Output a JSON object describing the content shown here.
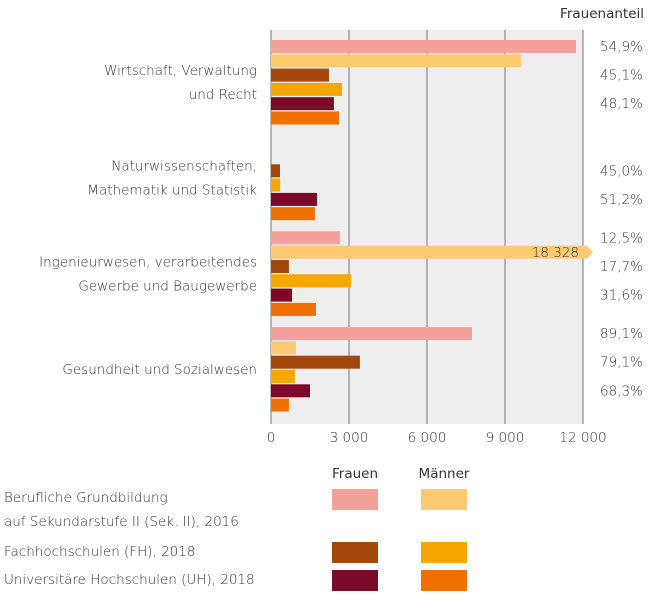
{
  "chart_data": {
    "type": "bar",
    "orientation": "horizontal",
    "categories": [
      "Wirtschaft, Verwaltung\nund Recht",
      "Naturwissenschaften,\nMathematik und Statistik",
      "Ingenieurwesen, verarbeitendes\nGewerbe und Baugewerbe",
      "Gesundheit und Sozialwesen"
    ],
    "series": [
      {
        "color": "#f4a19b",
        "values": [
          11730,
          null,
          2650,
          7730
        ]
      },
      {
        "color": "#fdca72",
        "values": [
          9615,
          null,
          18328,
          960
        ],
        "value_labels": [
          null,
          null,
          "18 328",
          null
        ]
      },
      {
        "color": "#a3470c",
        "values": [
          2230,
          346,
          690,
          3420
        ]
      },
      {
        "color": "#f5a700",
        "values": [
          2730,
          350,
          3080,
          920
        ]
      },
      {
        "color": "#7b0a2a",
        "values": [
          2420,
          1770,
          810,
          1500
        ]
      },
      {
        "color": "#f07000",
        "values": [
          2615,
          1690,
          1730,
          690
        ]
      }
    ],
    "xlim": [
      0,
      12000
    ],
    "xticks": [
      0,
      {
        "value": 3000,
        "label": "3 000"
      },
      {
        "value": 6000,
        "label": "6 000"
      },
      {
        "value": 9000,
        "label": "9 000"
      },
      {
        "value": 12000,
        "label": "12 000"
      }
    ],
    "grid": true,
    "shares": {
      "title": "Frauenanteil",
      "values": [
        [
          54.9,
          45.1,
          48.1
        ],
        [
          null,
          45.0,
          51.2
        ],
        [
          12.5,
          17.7,
          31.6
        ],
        [
          89.1,
          79.1,
          68.3
        ]
      ],
      "value_labels": [
        [
          "54,9%",
          "45,1%",
          "48,1%"
        ],
        [
          null,
          "45,0%",
          "51,2%"
        ],
        [
          "12,5%",
          "17,7%",
          "31,6%"
        ],
        [
          "89,1%",
          "79,1%",
          "68,3%"
        ]
      ]
    },
    "legend": {
      "columns": [
        "Frauen",
        "Männer"
      ],
      "rows": [
        "Berufliche Grundbildung\nauf Sekundarstufe II (Sek. II), 2016",
        "Fachhochschulen (FH), 2018",
        "Universitäre Hochschulen (UH), 2018"
      ]
    }
  }
}
